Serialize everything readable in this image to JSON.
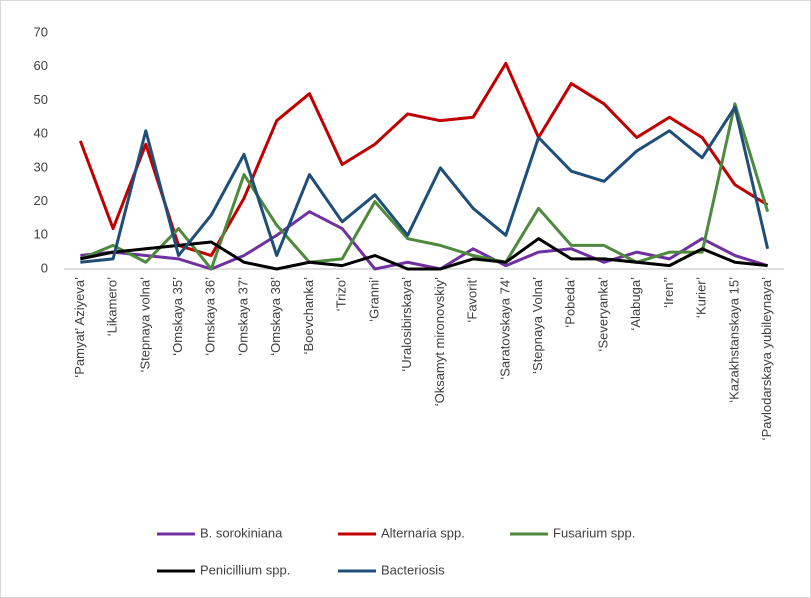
{
  "chart_data": {
    "type": "line",
    "categories": [
      "‘Pamyat’ Aziyeva’",
      "‘Likamero’",
      "‘Stepnaya volna’",
      "‘Omskaya 35’",
      "‘Omskaya 36’",
      "‘Omskaya 37’",
      "‘Omskaya 38’",
      "‘Boevchanka’",
      "‘Trizo’",
      "‘Granni’",
      "‘Uralosibirskaya’",
      "‘Oksamyt mironovskiy’",
      "‘Favorit’",
      "‘Saratovskaya 74’",
      "‘Stepnaya Volna’",
      "‘Pobeda’",
      "‘Severyanka’",
      "‘Alabuga’",
      "‘Iren’’",
      "‘Kurier’",
      "‘Kazakhstanskaya 15’",
      "‘Pavlodarskaya yubileynaya’"
    ],
    "series": [
      {
        "name": "B. sorokiniana",
        "color": "#7030a0",
        "values": [
          4,
          5,
          4,
          3,
          0,
          4,
          10,
          17,
          12,
          0,
          2,
          0,
          6,
          1,
          5,
          6,
          2,
          5,
          3,
          9,
          4,
          1
        ]
      },
      {
        "name": "Alternaria spp.",
        "color": "#c00000",
        "values": [
          38,
          12,
          37,
          7,
          4,
          21,
          44,
          52,
          31,
          37,
          46,
          44,
          45,
          61,
          39,
          55,
          49,
          39,
          45,
          39,
          25,
          19
        ]
      },
      {
        "name": "Fusarium spp.",
        "color": "#4e8a3e",
        "values": [
          3,
          7,
          2,
          12,
          0,
          28,
          13,
          2,
          3,
          20,
          9,
          7,
          4,
          2,
          18,
          7,
          7,
          2,
          5,
          5,
          49,
          17
        ]
      },
      {
        "name": "Penicillium spp.",
        "color": "#000000",
        "values": [
          3,
          5,
          6,
          7,
          8,
          2,
          0,
          2,
          1,
          4,
          0,
          0,
          3,
          2,
          9,
          3,
          3,
          2,
          1,
          6,
          2,
          1
        ]
      },
      {
        "name": "Bacteriosis",
        "color": "#1f4e79",
        "values": [
          2,
          3,
          41,
          4,
          16,
          34,
          4,
          28,
          14,
          22,
          10,
          30,
          18,
          10,
          39,
          29,
          26,
          35,
          41,
          33,
          48,
          6
        ]
      }
    ],
    "ylim": [
      0,
      70
    ],
    "yticks": [
      0,
      10,
      20,
      30,
      40,
      50,
      60,
      70
    ],
    "grid": false,
    "legend": "bottom"
  }
}
